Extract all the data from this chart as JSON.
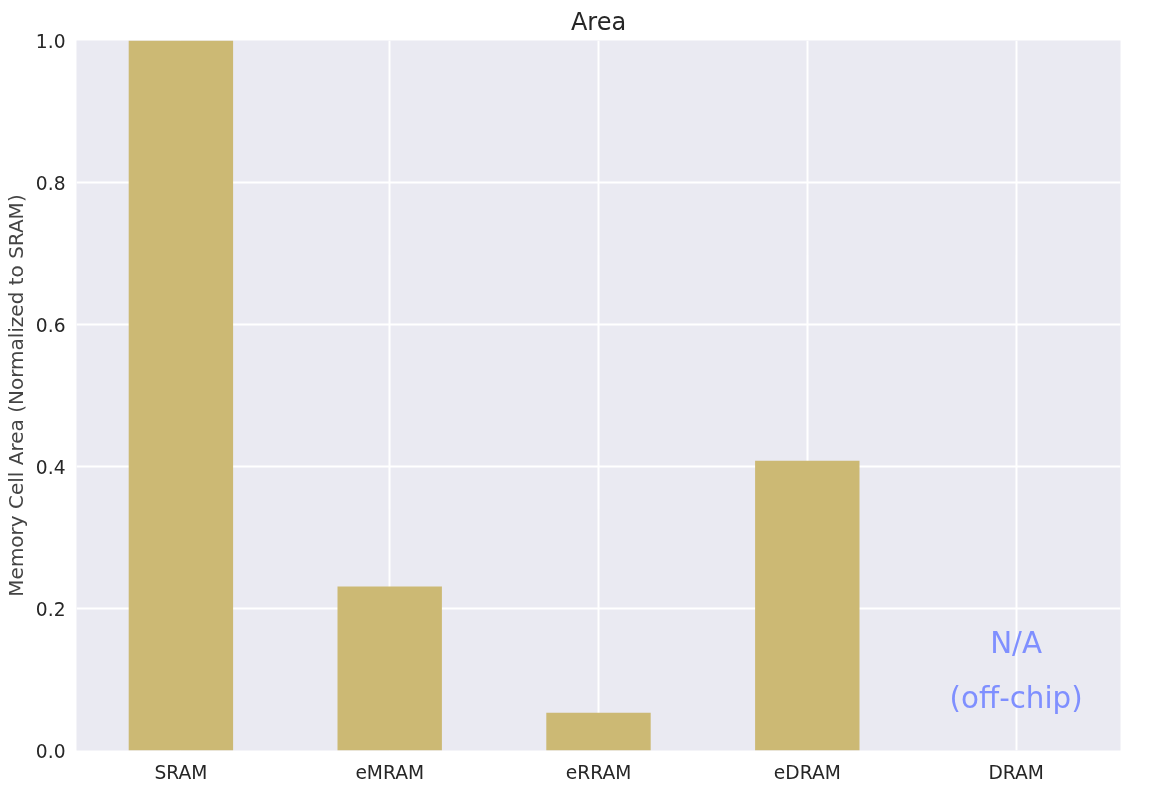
{
  "chart_data": {
    "type": "bar",
    "title": "Area",
    "ylabel": "Memory Cell Area (Normalized to SRAM)",
    "categories": [
      "SRAM",
      "eMRAM",
      "eRRAM",
      "eDRAM",
      "DRAM"
    ],
    "values": [
      1.0,
      0.231,
      0.053,
      0.408,
      null
    ],
    "color": "#ccb974",
    "ylim": [
      0,
      1.0
    ],
    "yticks": [
      {
        "value": 0,
        "label": "0.0"
      },
      0.2,
      0.4,
      0.6,
      0.8,
      {
        "value": 1,
        "label": "1.0"
      }
    ],
    "grid": true,
    "annotations": [
      "N/A\n(off-chip)"
    ]
  }
}
